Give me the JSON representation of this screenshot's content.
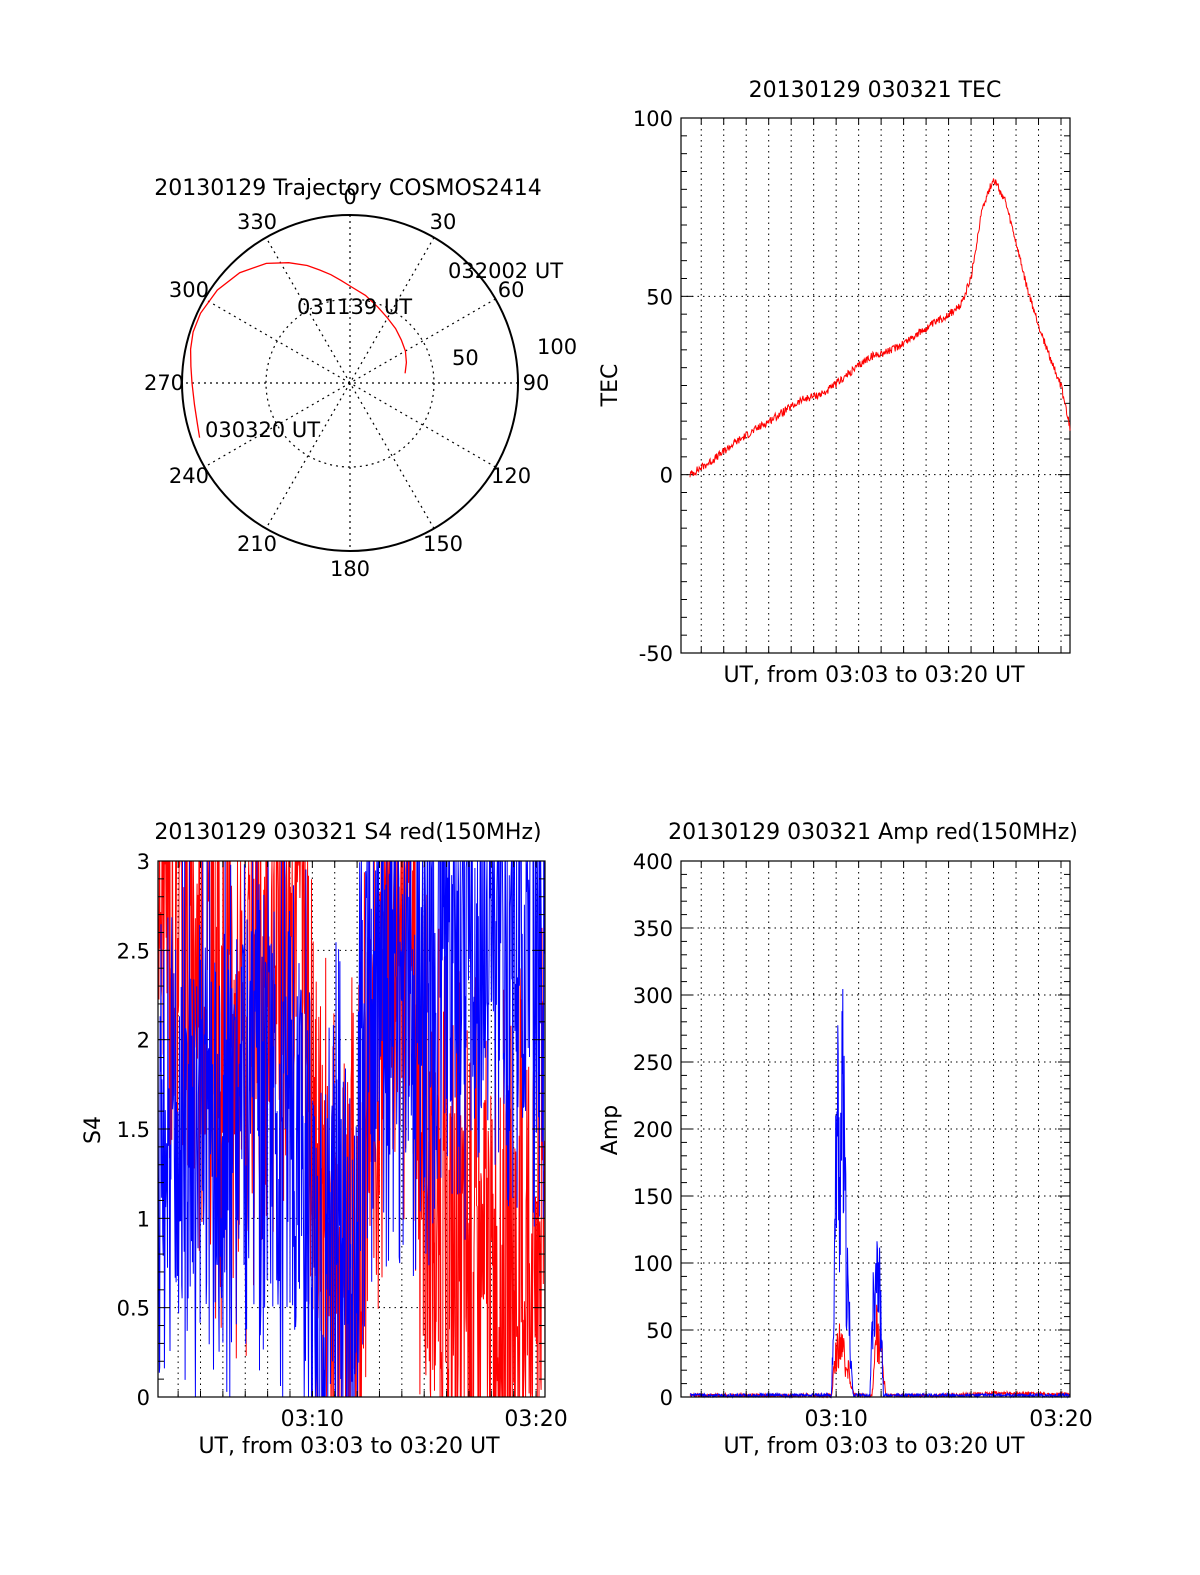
{
  "colors": {
    "red": "#ff0000",
    "blue": "#0000ff",
    "axis": "#000000",
    "grid": "#000000"
  },
  "chart_data": [
    {
      "type": "polar",
      "title": "20130129 Trajectory COSMOS2414",
      "azimuth_labels": [
        "0",
        "30",
        "60",
        "90",
        "120",
        "150",
        "180",
        "210",
        "240",
        "270",
        "300",
        "330"
      ],
      "radius_labels": [
        "50",
        "100"
      ],
      "elevation_rings": [
        50
      ],
      "trajectory": [
        {
          "az": 80,
          "r": 56
        },
        {
          "az": 70,
          "r": 60
        },
        {
          "az": 60,
          "r": 64
        },
        {
          "az": 50,
          "r": 67
        },
        {
          "az": 40,
          "r": 71
        },
        {
          "az": 30,
          "r": 75
        },
        {
          "az": 20,
          "r": 81
        },
        {
          "az": 10,
          "r": 89
        },
        {
          "az": 0,
          "r": 97
        },
        {
          "az": -5,
          "r": 103
        },
        {
          "az": -10,
          "r": 110
        },
        {
          "az": -15,
          "r": 117
        },
        {
          "az": -20,
          "r": 125
        },
        {
          "az": -27,
          "r": 135
        },
        {
          "az": -35,
          "r": 146
        },
        {
          "az": -45,
          "r": 156
        },
        {
          "az": -55,
          "r": 162
        },
        {
          "az": -65,
          "r": 165
        },
        {
          "az": -72,
          "r": 165
        },
        {
          "az": -78,
          "r": 163
        },
        {
          "az": -84,
          "r": 160
        },
        {
          "az": -90,
          "r": 158
        },
        {
          "az": -98,
          "r": 157
        },
        {
          "az": -105,
          "r": 158
        },
        {
          "az": -110,
          "r": 160
        }
      ],
      "annotations": [
        "032002 UT",
        "031139 UT",
        "030320 UT"
      ]
    },
    {
      "type": "line",
      "title": "20130129 030321 TEC",
      "ylabel": "TEC",
      "xlabel": "UT, from 03:03 to 03:20 UT",
      "ylim": [
        -50,
        100
      ],
      "yticks": [
        "-50",
        "0",
        "50",
        "100"
      ],
      "xrange_minutes": [
        183.1,
        200.4
      ],
      "grid": true,
      "series": [
        {
          "color": "red",
          "x": [
            183.5,
            184.5,
            185.5,
            186.5,
            187.5,
            188.5,
            189.5,
            190.5,
            191.5,
            192.5,
            193.5,
            194.5,
            195.5,
            196.0,
            196.5,
            197.0,
            197.5,
            198.0,
            198.5,
            199.0,
            199.5,
            200.0,
            200.4
          ],
          "y": [
            0,
            4,
            9,
            13,
            17,
            21,
            23,
            28,
            33,
            35,
            39,
            43,
            47,
            55,
            75,
            83,
            77,
            65,
            52,
            42,
            33,
            25,
            13
          ]
        }
      ]
    },
    {
      "type": "line",
      "title": "20130129 030321 S4 red(150MHz)",
      "ylabel": "S4",
      "xlabel": "UT, from 03:03 to 03:20 UT",
      "ylim": [
        0,
        3
      ],
      "yticks": [
        "0",
        "0.5",
        "1",
        "1.5",
        "2",
        "2.5",
        "3"
      ],
      "xticks": [
        "03:10",
        "03:20"
      ],
      "xrange_minutes": [
        183.1,
        200.4
      ],
      "grid": true,
      "series": [
        {
          "color": "red",
          "x": [
            183.1,
            185.0,
            187.0,
            189.0,
            189.6,
            190.0,
            191.0,
            191.8,
            192.6,
            193.6,
            194.4,
            195.0,
            196.0,
            197.5,
            199.0,
            200.4
          ],
          "y": [
            3.0,
            2.4,
            1.8,
            2.9,
            3.0,
            1.3,
            0.9,
            0.8,
            1.6,
            2.7,
            2.6,
            1.2,
            0.7,
            0.6,
            0.6,
            0.9
          ]
        },
        {
          "color": "blue",
          "x": [
            183.1,
            184.0,
            185.0,
            186.0,
            187.0,
            188.0,
            189.0,
            189.8,
            190.3,
            191.0,
            191.7,
            192.3,
            193.0,
            194.0,
            195.0,
            196.0,
            197.0,
            198.5,
            200.4
          ],
          "y": [
            1.6,
            1.6,
            1.5,
            1.6,
            1.5,
            1.6,
            1.5,
            1.4,
            0.1,
            1.2,
            0.1,
            1.8,
            2.4,
            2.5,
            2.3,
            2.7,
            2.6,
            2.7,
            2.6
          ]
        }
      ]
    },
    {
      "type": "line",
      "title": "20130129 030321 Amp red(150MHz)",
      "ylabel": "Amp",
      "xlabel": "UT, from 03:03 to 03:20 UT",
      "ylim": [
        0,
        400
      ],
      "yticks": [
        "0",
        "50",
        "100",
        "150",
        "200",
        "250",
        "300",
        "350",
        "400"
      ],
      "xticks": [
        "03:10",
        "03:20"
      ],
      "xrange_minutes": [
        183.1,
        200.4
      ],
      "grid": true,
      "series": [
        {
          "color": "red",
          "x": [
            183.5,
            189.8,
            190.0,
            190.2,
            190.4,
            190.6,
            190.8,
            191.6,
            191.8,
            192.0,
            192.2,
            195.0,
            197.0,
            200.4
          ],
          "y": [
            0,
            0,
            40,
            55,
            30,
            20,
            0,
            0,
            60,
            50,
            0,
            0,
            2,
            1
          ]
        },
        {
          "color": "blue",
          "x": [
            183.5,
            189.8,
            189.95,
            190.05,
            190.15,
            190.3,
            190.45,
            190.6,
            190.75,
            191.5,
            191.65,
            191.8,
            191.95,
            192.1,
            200.4
          ],
          "y": [
            0,
            0,
            150,
            280,
            200,
            270,
            120,
            60,
            0,
            0,
            80,
            155,
            90,
            0,
            0
          ]
        }
      ]
    }
  ]
}
